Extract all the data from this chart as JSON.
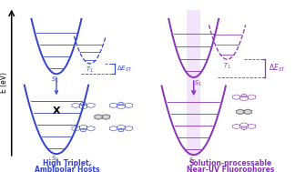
{
  "bg_color": "#ffffff",
  "left_color": "#3344cc",
  "right_color": "#8833bb",
  "right_glow_color": "#e8d0f8",
  "axis_label": "E (eV)",
  "left_caption_line1": "High Triplet,",
  "left_caption_line2": "Ambipolar Hosts",
  "right_caption_line1": "Solution-processable",
  "right_caption_line2": "Near-UV Fluorophores",
  "s1_label": "S$_1$",
  "t1_label": "T$_1$",
  "s0_label": "S$_0$",
  "x_label": "X",
  "delta_est": "$\\Delta E_{ST}$"
}
